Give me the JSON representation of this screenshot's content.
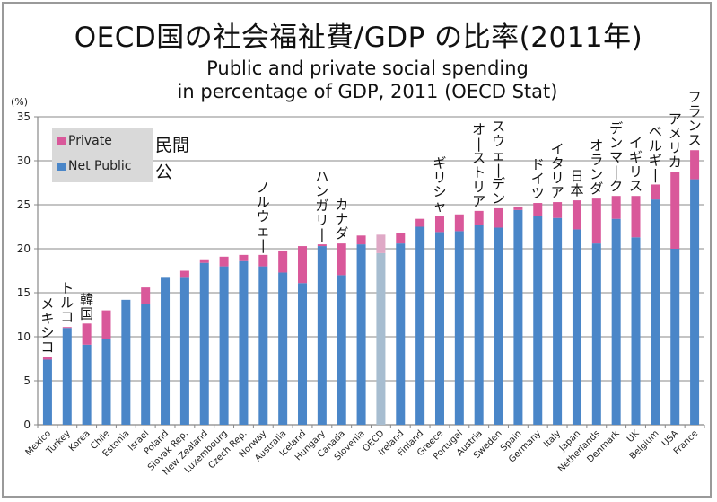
{
  "chart_data": {
    "type": "bar",
    "stacked": true,
    "title": "OECD国の社会福祉費/GDP の比率(2011年)",
    "subtitle_lines": [
      "Public and private social spending",
      "in percentage of GDP, 2011 (OECD Stat)"
    ],
    "ylabel": "(%)",
    "xlabel": "",
    "ylim": [
      0,
      35
    ],
    "yticks": [
      0,
      5,
      10,
      15,
      20,
      25,
      30,
      35
    ],
    "grid": true,
    "legend_position": "top-left",
    "legend": [
      {
        "name": "Private",
        "jp": "民間",
        "color": "#d9589a"
      },
      {
        "name": "Net Public",
        "jp": "公",
        "color": "#4a86c8"
      }
    ],
    "highlight_category": "OECD",
    "highlight_colors": {
      "public": "#a7bdd0",
      "private": "#dfa9c6",
      "label": "#d4306f"
    },
    "categories": [
      "Mexico",
      "Turkey",
      "Korea",
      "Chile",
      "Estonia",
      "Israel",
      "Poland",
      "Slovak Rep.",
      "New Zealand",
      "Luxembourg",
      "Czech Rep.",
      "Norway",
      "Australia",
      "Iceland",
      "Hungary",
      "Canada",
      "Slovenia",
      "OECD",
      "Ireland",
      "Finland",
      "Greece",
      "Portugal",
      "Austria",
      "Sweden",
      "Spain",
      "Germany",
      "Italy",
      "Japan",
      "Netherlands",
      "Denmark",
      "UK",
      "Belgium",
      "USA",
      "France"
    ],
    "series": [
      {
        "name": "Net Public",
        "values": [
          7.4,
          11.0,
          9.1,
          9.7,
          14.2,
          13.7,
          16.7,
          16.7,
          18.4,
          18.0,
          18.6,
          18.0,
          17.3,
          16.1,
          20.3,
          17.0,
          20.5,
          19.5,
          20.6,
          22.5,
          21.9,
          22.0,
          22.7,
          22.4,
          24.4,
          23.7,
          23.5,
          22.2,
          20.6,
          23.4,
          21.3,
          25.6,
          20.0,
          27.9
        ]
      },
      {
        "name": "Private",
        "values": [
          0.3,
          0.1,
          2.4,
          3.3,
          0.0,
          1.9,
          0.0,
          0.8,
          0.4,
          1.1,
          0.7,
          1.3,
          2.5,
          4.2,
          0.2,
          3.6,
          1.0,
          2.1,
          1.2,
          0.9,
          1.8,
          1.9,
          1.6,
          2.2,
          0.4,
          1.5,
          1.8,
          3.3,
          5.1,
          2.6,
          4.7,
          1.7,
          8.7,
          3.3
        ]
      }
    ],
    "annotations": [
      {
        "category": "Mexico",
        "text": "メキシコ",
        "color": "#111111"
      },
      {
        "category": "Turkey",
        "text": "トルコ",
        "color": "#111111"
      },
      {
        "category": "Korea",
        "text": "韓国",
        "color": "#111111"
      },
      {
        "category": "Norway",
        "text": "ノルウェー",
        "color": "#111111"
      },
      {
        "category": "Hungary",
        "text": "ハンガリー",
        "color": "#111111"
      },
      {
        "category": "Canada",
        "text": "カナダ",
        "color": "#111111"
      },
      {
        "category": "Greece",
        "text": "ギリシャ",
        "color": "#111111"
      },
      {
        "category": "Austria",
        "text": "オーストリア",
        "color": "#111111"
      },
      {
        "category": "Sweden",
        "text": "スウェーデン",
        "color": "#111111"
      },
      {
        "category": "Germany",
        "text": "ドイツ",
        "color": "#111111"
      },
      {
        "category": "Italy",
        "text": "イタリア",
        "color": "#111111"
      },
      {
        "category": "Japan",
        "text": "日本",
        "color": "#d42020"
      },
      {
        "category": "Netherlands",
        "text": "オランダ",
        "color": "#111111"
      },
      {
        "category": "Denmark",
        "text": "デンマーク",
        "color": "#111111"
      },
      {
        "category": "UK",
        "text": "イギリス",
        "color": "#111111"
      },
      {
        "category": "Belgium",
        "text": "ベルギー",
        "color": "#111111"
      },
      {
        "category": "USA",
        "text": "アメリカ",
        "color": "#111111"
      },
      {
        "category": "France",
        "text": "フランス",
        "color": "#111111"
      }
    ]
  }
}
